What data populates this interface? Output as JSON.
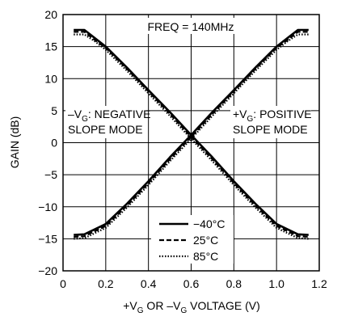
{
  "chart_data": {
    "type": "line",
    "xlabel_parts": [
      "+V",
      "G",
      " OR –V",
      "G",
      " VOLTAGE (V)"
    ],
    "ylabel": "GAIN (dB)",
    "xlim": [
      0,
      1.2
    ],
    "ylim": [
      -20,
      20
    ],
    "x_ticks": [
      "0",
      "0.2",
      "0.4",
      "0.6",
      "0.8",
      "1.0",
      "1.2"
    ],
    "y_ticks": [
      "20",
      "15",
      "10",
      "5",
      "0",
      "−5",
      "−10",
      "−15",
      "−20"
    ],
    "grid": true,
    "legend_position": "bottom-center",
    "annotations": {
      "freq": "FREQ = 140MHz",
      "negative_line1_parts": [
        "–V",
        "G",
        ": NEGATIVE"
      ],
      "negative_line2": "SLOPE MODE",
      "positive_line1_parts": [
        "+V",
        "G",
        ": POSITIVE"
      ],
      "positive_line2": "SLOPE MODE"
    },
    "series": [
      {
        "name": "−40°C",
        "style": "solid",
        "negative_slope": [
          [
            0.05,
            17.6
          ],
          [
            0.1,
            17.6
          ],
          [
            0.15,
            16.3
          ],
          [
            0.2,
            15
          ],
          [
            0.3,
            11.7
          ],
          [
            0.4,
            8.2
          ],
          [
            0.5,
            4.8
          ],
          [
            0.6,
            1.2
          ],
          [
            0.7,
            -2.3
          ],
          [
            0.8,
            -6
          ],
          [
            0.9,
            -9.5
          ],
          [
            1.0,
            -12.7
          ],
          [
            1.1,
            -14.3
          ],
          [
            1.15,
            -14.4
          ]
        ],
        "positive_slope": [
          [
            0.05,
            -14.4
          ],
          [
            0.1,
            -14.3
          ],
          [
            0.2,
            -12.7
          ],
          [
            0.3,
            -9.5
          ],
          [
            0.4,
            -6
          ],
          [
            0.5,
            -2.3
          ],
          [
            0.6,
            1.2
          ],
          [
            0.7,
            4.8
          ],
          [
            0.8,
            8.2
          ],
          [
            0.9,
            11.7
          ],
          [
            1.0,
            15
          ],
          [
            1.05,
            16.3
          ],
          [
            1.1,
            17.6
          ],
          [
            1.15,
            17.6
          ]
        ]
      },
      {
        "name": "25°C",
        "style": "dashed",
        "negative_slope": [
          [
            0.05,
            17.3
          ],
          [
            0.1,
            17.3
          ],
          [
            0.15,
            16
          ],
          [
            0.2,
            14.8
          ],
          [
            0.3,
            11.5
          ],
          [
            0.4,
            8
          ],
          [
            0.5,
            4.5
          ],
          [
            0.6,
            0.9
          ],
          [
            0.7,
            -2.6
          ],
          [
            0.8,
            -6.3
          ],
          [
            0.9,
            -9.8
          ],
          [
            1.0,
            -13
          ],
          [
            1.1,
            -14.6
          ],
          [
            1.15,
            -14.7
          ]
        ],
        "positive_slope": [
          [
            0.05,
            -14.7
          ],
          [
            0.1,
            -14.6
          ],
          [
            0.2,
            -13
          ],
          [
            0.3,
            -9.8
          ],
          [
            0.4,
            -6.3
          ],
          [
            0.5,
            -2.6
          ],
          [
            0.6,
            0.9
          ],
          [
            0.7,
            4.5
          ],
          [
            0.8,
            8
          ],
          [
            0.9,
            11.5
          ],
          [
            1.0,
            14.8
          ],
          [
            1.05,
            16
          ],
          [
            1.1,
            17.3
          ],
          [
            1.15,
            17.3
          ]
        ]
      },
      {
        "name": "85°C",
        "style": "dotted",
        "negative_slope": [
          [
            0.05,
            16.9
          ],
          [
            0.1,
            16.9
          ],
          [
            0.15,
            15.8
          ],
          [
            0.2,
            14.5
          ],
          [
            0.3,
            11.2
          ],
          [
            0.4,
            7.7
          ],
          [
            0.5,
            4.2
          ],
          [
            0.6,
            0.6
          ],
          [
            0.7,
            -2.9
          ],
          [
            0.8,
            -6.6
          ],
          [
            0.9,
            -10.1
          ],
          [
            1.0,
            -13.3
          ],
          [
            1.1,
            -14.9
          ],
          [
            1.15,
            -15
          ]
        ],
        "positive_slope": [
          [
            0.05,
            -15
          ],
          [
            0.1,
            -14.9
          ],
          [
            0.2,
            -13.3
          ],
          [
            0.3,
            -10.1
          ],
          [
            0.4,
            -6.6
          ],
          [
            0.5,
            -2.9
          ],
          [
            0.6,
            0.6
          ],
          [
            0.7,
            4.2
          ],
          [
            0.8,
            7.7
          ],
          [
            0.9,
            11.2
          ],
          [
            1.0,
            14.5
          ],
          [
            1.05,
            15.8
          ],
          [
            1.1,
            16.9
          ],
          [
            1.15,
            16.9
          ]
        ]
      }
    ]
  }
}
